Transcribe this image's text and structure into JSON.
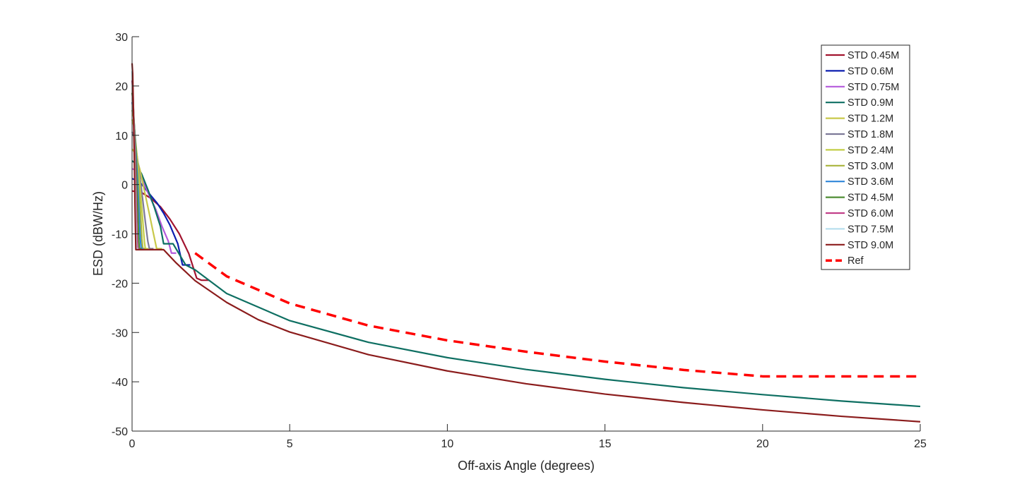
{
  "chart_data": {
    "type": "line",
    "title": "",
    "xlabel": "Off-axis Angle (degrees)",
    "ylabel": "ESD (dBW/Hz)",
    "xlim": [
      0,
      25
    ],
    "ylim": [
      -50,
      30
    ],
    "xticks": [
      0,
      5,
      10,
      15,
      20,
      25
    ],
    "yticks": [
      -50,
      -40,
      -30,
      -20,
      -10,
      0,
      10,
      20,
      30
    ],
    "grid": false,
    "legend_position": "top-right",
    "series": [
      {
        "name": "STD 0.45M",
        "color": "#a2142f",
        "dashed": false,
        "points": [
          [
            0,
            -1.3
          ],
          [
            0.3,
            -1.6
          ],
          [
            0.6,
            -2.8
          ],
          [
            0.9,
            -4.5
          ],
          [
            1.2,
            -7.0
          ],
          [
            1.5,
            -10.0
          ],
          [
            1.8,
            -14.0
          ],
          [
            2.05,
            -19.0
          ],
          [
            2.2,
            -19.4
          ],
          [
            2.45,
            -19.4
          ]
        ]
      },
      {
        "name": "STD 0.6M",
        "color": "#0d1fb0",
        "dashed": false,
        "points": [
          [
            0,
            1.2
          ],
          [
            0.1,
            1.0
          ],
          [
            0.3,
            0.1
          ],
          [
            0.5,
            -1.5
          ],
          [
            0.8,
            -3.8
          ],
          [
            1.0,
            -5.8
          ],
          [
            1.2,
            -8.2
          ],
          [
            1.45,
            -12.0
          ],
          [
            1.6,
            -16.3
          ],
          [
            1.85,
            -16.3
          ]
        ]
      },
      {
        "name": "STD 0.75M",
        "color": "#b45adb",
        "dashed": false,
        "points": [
          [
            0,
            3.2
          ],
          [
            0.1,
            3.0
          ],
          [
            0.3,
            1.3
          ],
          [
            0.5,
            -1.6
          ],
          [
            0.75,
            -5.0
          ],
          [
            0.95,
            -8.5
          ],
          [
            1.15,
            -11.5
          ],
          [
            1.25,
            -13.9
          ],
          [
            1.4,
            -13.9
          ]
        ]
      },
      {
        "name": "STD 0.9M",
        "color": "#0e6f62",
        "dashed": false,
        "points": [
          [
            0,
            4.8
          ],
          [
            0.1,
            4.4
          ],
          [
            0.3,
            2.2
          ],
          [
            0.5,
            -1.0
          ],
          [
            0.7,
            -4.5
          ],
          [
            0.9,
            -8.5
          ],
          [
            1.0,
            -12.0
          ],
          [
            1.3,
            -12.0
          ],
          [
            1.7,
            -16.3
          ],
          [
            2.0,
            -17.3
          ],
          [
            3,
            -22.1
          ],
          [
            5,
            -27.6
          ],
          [
            7.5,
            -32.0
          ],
          [
            10,
            -35.1
          ],
          [
            12.5,
            -37.5
          ],
          [
            15,
            -39.5
          ],
          [
            17.5,
            -41.2
          ],
          [
            20,
            -42.6
          ],
          [
            22.5,
            -43.9
          ],
          [
            25,
            -45.0
          ]
        ]
      },
      {
        "name": "STD 1.2M",
        "color": "#c8c84a",
        "dashed": false,
        "points": [
          [
            0,
            7.2
          ],
          [
            0.1,
            6.4
          ],
          [
            0.25,
            3.0
          ],
          [
            0.4,
            -1.5
          ],
          [
            0.55,
            -6.0
          ],
          [
            0.68,
            -10.0
          ],
          [
            0.78,
            -13.0
          ],
          [
            0.95,
            -13.0
          ]
        ]
      },
      {
        "name": "STD 1.8M",
        "color": "#7d7a98",
        "dashed": false,
        "points": [
          [
            0,
            10.7
          ],
          [
            0.08,
            9.4
          ],
          [
            0.18,
            4.8
          ],
          [
            0.3,
            -1.0
          ],
          [
            0.42,
            -7.5
          ],
          [
            0.5,
            -11.5
          ],
          [
            0.55,
            -13.0
          ],
          [
            0.68,
            -13.0
          ]
        ]
      },
      {
        "name": "STD 2.4M",
        "color": "#c3cd47",
        "dashed": false,
        "points": [
          [
            0,
            13.2
          ],
          [
            0.06,
            11.8
          ],
          [
            0.14,
            7.0
          ],
          [
            0.24,
            0.5
          ],
          [
            0.33,
            -6.5
          ],
          [
            0.39,
            -11.5
          ],
          [
            0.42,
            -13.0
          ],
          [
            0.52,
            -13.0
          ]
        ]
      },
      {
        "name": "STD 3.0M",
        "color": "#a9b43c",
        "dashed": false,
        "points": [
          [
            0,
            15.1
          ],
          [
            0.05,
            13.6
          ],
          [
            0.11,
            8.5
          ],
          [
            0.19,
            1.5
          ],
          [
            0.27,
            -6.0
          ],
          [
            0.31,
            -11.0
          ],
          [
            0.34,
            -13.0
          ],
          [
            0.42,
            -13.0
          ]
        ]
      },
      {
        "name": "STD 3.6M",
        "color": "#2f86d9",
        "dashed": false,
        "points": [
          [
            0,
            16.7
          ],
          [
            0.04,
            15.0
          ],
          [
            0.09,
            10.0
          ],
          [
            0.16,
            2.5
          ],
          [
            0.22,
            -5.5
          ],
          [
            0.26,
            -11.0
          ],
          [
            0.29,
            -13.0
          ],
          [
            0.36,
            -13.0
          ]
        ]
      },
      {
        "name": "STD 4.5M",
        "color": "#4f8d34",
        "dashed": false,
        "points": [
          [
            0,
            18.6
          ],
          [
            0.03,
            17.0
          ],
          [
            0.075,
            11.5
          ],
          [
            0.13,
            3.5
          ],
          [
            0.18,
            -5.0
          ],
          [
            0.21,
            -11.0
          ],
          [
            0.23,
            -13.0
          ],
          [
            0.3,
            -13.0
          ]
        ]
      },
      {
        "name": "STD 6.0M",
        "color": "#c2408a",
        "dashed": false,
        "points": [
          [
            0,
            21.1
          ],
          [
            0.025,
            19.2
          ],
          [
            0.055,
            13.5
          ],
          [
            0.1,
            4.5
          ],
          [
            0.135,
            -4.5
          ],
          [
            0.16,
            -11.0
          ],
          [
            0.175,
            -13.0
          ],
          [
            0.23,
            -13.0
          ]
        ]
      },
      {
        "name": "STD 7.5M",
        "color": "#b8dfee",
        "dashed": false,
        "points": [
          [
            0,
            23.0
          ],
          [
            0.02,
            21.0
          ],
          [
            0.045,
            15.0
          ],
          [
            0.08,
            5.0
          ],
          [
            0.11,
            -4.0
          ],
          [
            0.13,
            -11.0
          ],
          [
            0.14,
            -13.0
          ],
          [
            0.19,
            -13.0
          ]
        ]
      },
      {
        "name": "STD 9.0M",
        "color": "#8b1c1c",
        "dashed": false,
        "points": [
          [
            0,
            24.6
          ],
          [
            0.02,
            22.5
          ],
          [
            0.04,
            16.0
          ],
          [
            0.07,
            6.0
          ],
          [
            0.09,
            -3.0
          ],
          [
            0.11,
            -10.0
          ],
          [
            0.12,
            -13.2
          ],
          [
            1.0,
            -13.2
          ],
          [
            1.4,
            -15.9
          ],
          [
            2,
            -19.5
          ],
          [
            3,
            -23.9
          ],
          [
            4,
            -27.4
          ],
          [
            5,
            -29.9
          ],
          [
            7.5,
            -34.5
          ],
          [
            10,
            -37.8
          ],
          [
            12.5,
            -40.4
          ],
          [
            15,
            -42.5
          ],
          [
            17.5,
            -44.2
          ],
          [
            20,
            -45.7
          ],
          [
            22.5,
            -47.0
          ],
          [
            25,
            -48.1
          ]
        ]
      },
      {
        "name": "Ref",
        "color": "#ff0000",
        "dashed": true,
        "points": [
          [
            2,
            -13.9
          ],
          [
            3,
            -18.6
          ],
          [
            5,
            -24.1
          ],
          [
            7.5,
            -28.6
          ],
          [
            10,
            -31.6
          ],
          [
            12.5,
            -33.9
          ],
          [
            15,
            -35.9
          ],
          [
            17.5,
            -37.6
          ],
          [
            20,
            -38.9
          ],
          [
            22,
            -38.9
          ],
          [
            25,
            -38.9
          ]
        ]
      }
    ]
  }
}
